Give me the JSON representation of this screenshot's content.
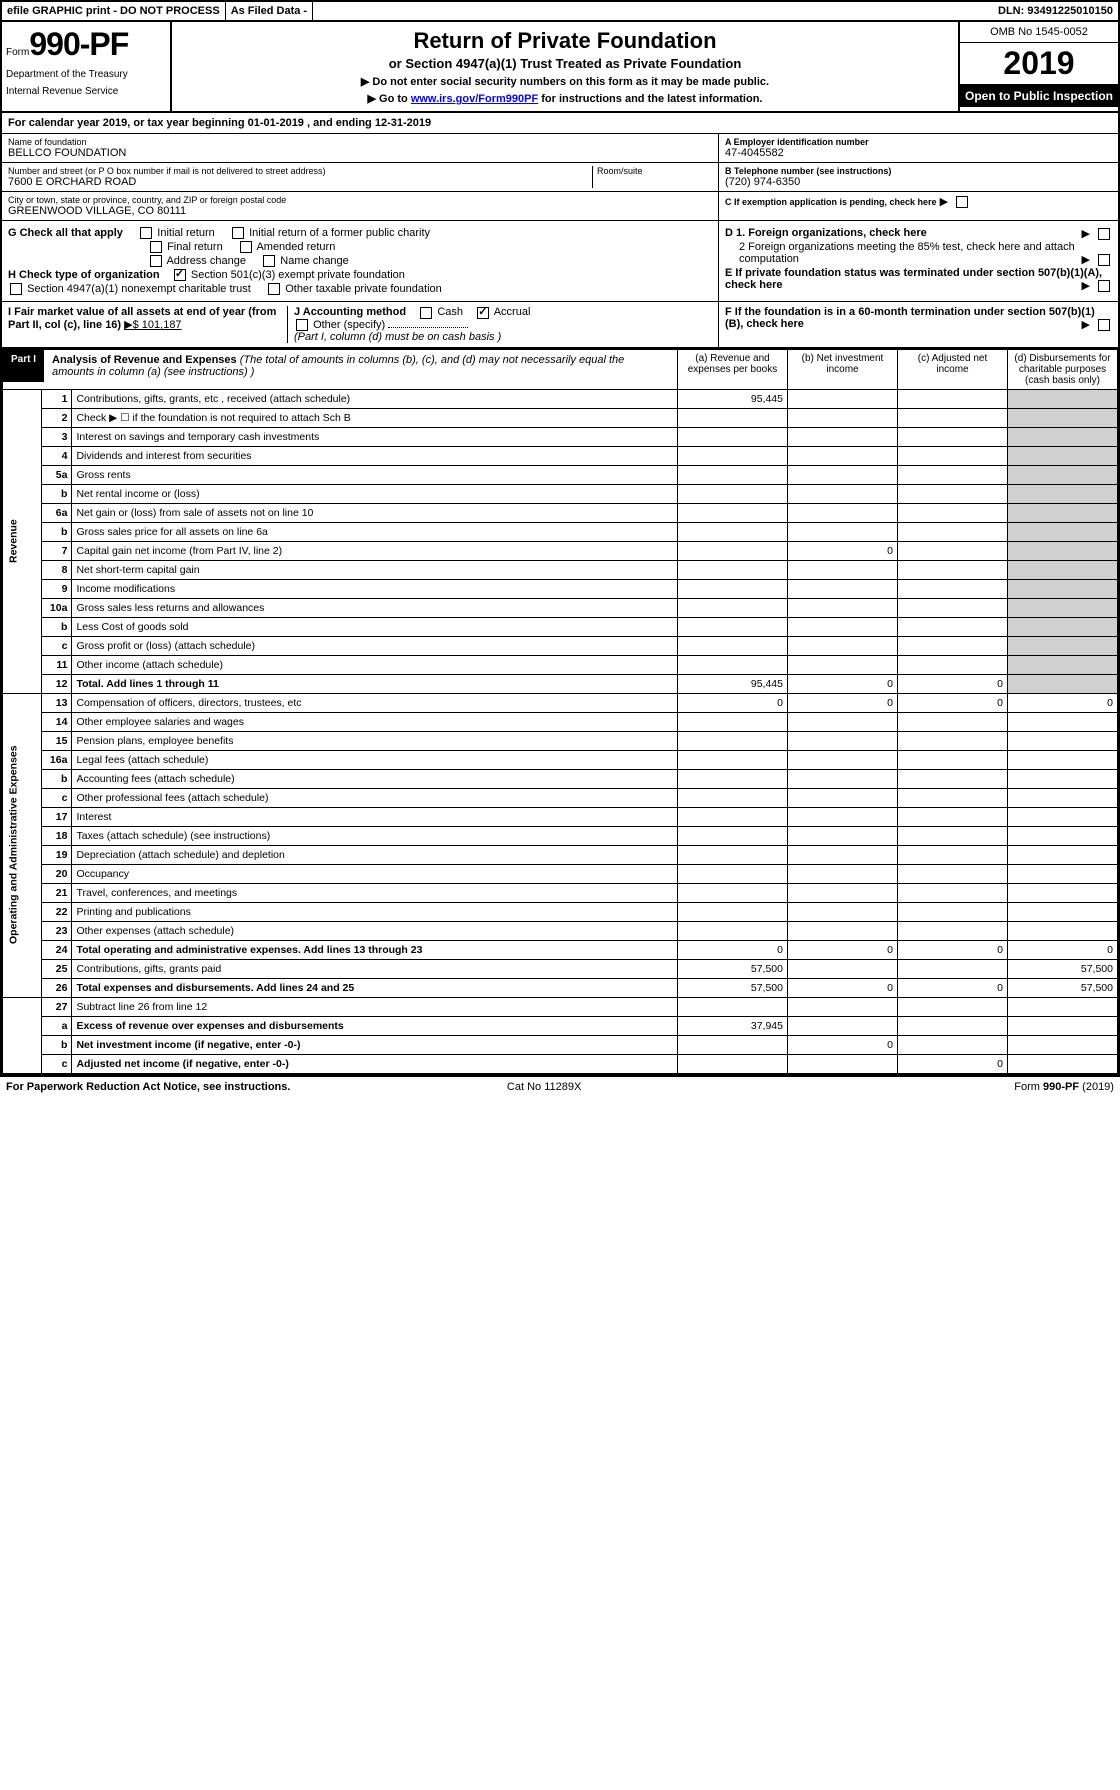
{
  "topbar": {
    "efile": "efile GRAPHIC print - DO NOT PROCESS",
    "filed": "As Filed Data -",
    "dln_label": "DLN:",
    "dln": "93491225010150"
  },
  "header": {
    "form_prefix": "Form",
    "form_num": "990-PF",
    "dept1": "Department of the Treasury",
    "dept2": "Internal Revenue Service",
    "title": "Return of Private Foundation",
    "subtitle": "or Section 4947(a)(1) Trust Treated as Private Foundation",
    "inst1": "▶ Do not enter social security numbers on this form as it may be made public.",
    "inst2_pre": "▶ Go to ",
    "inst2_link": "www.irs.gov/Form990PF",
    "inst2_post": " for instructions and the latest information.",
    "omb": "OMB No 1545-0052",
    "year": "2019",
    "open_pub": "Open to Public Inspection"
  },
  "cal_year": {
    "text_pre": "For calendar year 2019, or tax year beginning ",
    "begin": "01-01-2019",
    "mid": " , and ending ",
    "end": "12-31-2019"
  },
  "entity": {
    "name_lbl": "Name of foundation",
    "name": "BELLCO FOUNDATION",
    "addr_lbl": "Number and street (or P O  box number if mail is not delivered to street address)",
    "addr": "7600 E ORCHARD ROAD",
    "room_lbl": "Room/suite",
    "city_lbl": "City or town, state or province, country, and ZIP or foreign postal code",
    "city": "GREENWOOD VILLAGE, CO  80111",
    "ein_lbl": "A Employer identification number",
    "ein": "47-4045582",
    "tel_lbl": "B Telephone number (see instructions)",
    "tel": "(720) 974-6350",
    "c_lbl": "C If exemption application is pending, check here"
  },
  "checks": {
    "g_lbl": "G Check all that apply",
    "g_opts": [
      "Initial return",
      "Initial return of a former public charity",
      "Final return",
      "Amended return",
      "Address change",
      "Name change"
    ],
    "h_lbl": "H Check type of organization",
    "h_501": "Section 501(c)(3) exempt private foundation",
    "h_4947": "Section 4947(a)(1) nonexempt charitable trust",
    "h_other": "Other taxable private foundation",
    "d1": "D 1. Foreign organizations, check here",
    "d2": "2 Foreign organizations meeting the 85% test, check here and attach computation",
    "e": "E  If private foundation status was terminated under section 507(b)(1)(A), check here",
    "f": "F  If the foundation is in a 60-month termination under section 507(b)(1)(B), check here",
    "i_lbl": "I Fair market value of all assets at end of year (from Part II, col  (c), line 16)",
    "i_val": "▶$  101,187",
    "j_lbl": "J Accounting method",
    "j_cash": "Cash",
    "j_accrual": "Accrual",
    "j_other": "Other (specify)",
    "j_note": "(Part I, column (d) must be on cash basis )"
  },
  "part1": {
    "label": "Part I",
    "title": "Analysis of Revenue and Expenses",
    "note": "(The total of amounts in columns (b), (c), and (d) may not necessarily equal the amounts in column (a) (see instructions) )",
    "cols": {
      "a": "(a) Revenue and expenses per books",
      "b": "(b) Net investment income",
      "c": "(c) Adjusted net income",
      "d": "(d) Disbursements for charitable purposes (cash basis only)"
    }
  },
  "side_labels": {
    "revenue": "Revenue",
    "expenses": "Operating and Administrative Expenses"
  },
  "rows": [
    {
      "n": "1",
      "d": "Contributions, gifts, grants, etc , received (attach schedule)",
      "a": "95,445"
    },
    {
      "n": "2",
      "d": "Check ▶ ☐ if the foundation is not required to attach Sch  B"
    },
    {
      "n": "3",
      "d": "Interest on savings and temporary cash investments"
    },
    {
      "n": "4",
      "d": "Dividends and interest from securities"
    },
    {
      "n": "5a",
      "d": "Gross rents"
    },
    {
      "n": "b",
      "d": "Net rental income or (loss)"
    },
    {
      "n": "6a",
      "d": "Net gain or (loss) from sale of assets not on line 10"
    },
    {
      "n": "b",
      "d": "Gross sales price for all assets on line 6a"
    },
    {
      "n": "7",
      "d": "Capital gain net income (from Part IV, line 2)",
      "b": "0"
    },
    {
      "n": "8",
      "d": "Net short-term capital gain"
    },
    {
      "n": "9",
      "d": "Income modifications"
    },
    {
      "n": "10a",
      "d": "Gross sales less returns and allowances"
    },
    {
      "n": "b",
      "d": "Less  Cost of goods sold"
    },
    {
      "n": "c",
      "d": "Gross profit or (loss) (attach schedule)"
    },
    {
      "n": "11",
      "d": "Other income (attach schedule)"
    },
    {
      "n": "12",
      "d": "Total. Add lines 1 through 11",
      "bold": true,
      "a": "95,445",
      "b": "0",
      "c": "0"
    },
    {
      "n": "13",
      "d": "Compensation of officers, directors, trustees, etc",
      "a": "0",
      "b": "0",
      "c": "0",
      "dd": "0"
    },
    {
      "n": "14",
      "d": "Other employee salaries and wages"
    },
    {
      "n": "15",
      "d": "Pension plans, employee benefits"
    },
    {
      "n": "16a",
      "d": "Legal fees (attach schedule)"
    },
    {
      "n": "b",
      "d": "Accounting fees (attach schedule)"
    },
    {
      "n": "c",
      "d": "Other professional fees (attach schedule)"
    },
    {
      "n": "17",
      "d": "Interest"
    },
    {
      "n": "18",
      "d": "Taxes (attach schedule) (see instructions)"
    },
    {
      "n": "19",
      "d": "Depreciation (attach schedule) and depletion"
    },
    {
      "n": "20",
      "d": "Occupancy"
    },
    {
      "n": "21",
      "d": "Travel, conferences, and meetings"
    },
    {
      "n": "22",
      "d": "Printing and publications"
    },
    {
      "n": "23",
      "d": "Other expenses (attach schedule)"
    },
    {
      "n": "24",
      "d": "Total operating and administrative expenses. Add lines 13 through 23",
      "bold": true,
      "a": "0",
      "b": "0",
      "c": "0",
      "dd": "0"
    },
    {
      "n": "25",
      "d": "Contributions, gifts, grants paid",
      "a": "57,500",
      "dd": "57,500"
    },
    {
      "n": "26",
      "d": "Total expenses and disbursements. Add lines 24 and 25",
      "bold": true,
      "a": "57,500",
      "b": "0",
      "c": "0",
      "dd": "57,500"
    },
    {
      "n": "27",
      "d": "Subtract line 26 from line 12"
    },
    {
      "n": "a",
      "d": "Excess of revenue over expenses and disbursements",
      "bold": true,
      "a": "37,945"
    },
    {
      "n": "b",
      "d": "Net investment income (if negative, enter -0-)",
      "bold": true,
      "b": "0"
    },
    {
      "n": "c",
      "d": "Adjusted net income (if negative, enter -0-)",
      "bold": true,
      "c": "0"
    }
  ],
  "footer": {
    "left": "For Paperwork Reduction Act Notice, see instructions.",
    "mid": "Cat  No  11289X",
    "right": "Form 990-PF (2019)"
  }
}
